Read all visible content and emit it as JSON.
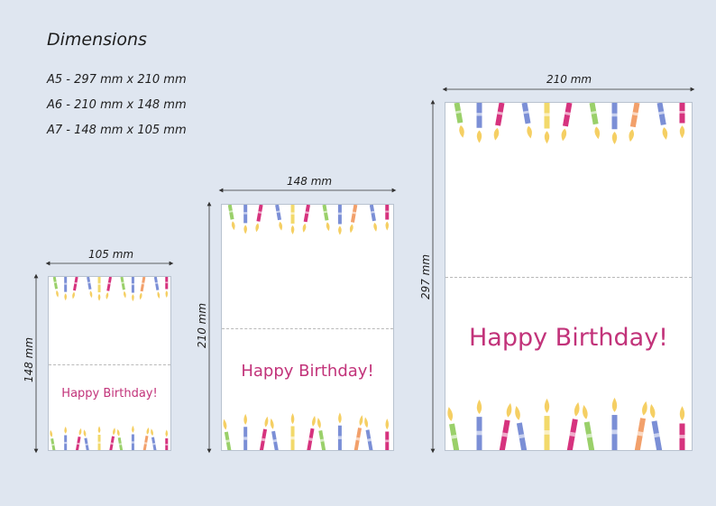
{
  "heading": "Dimensions",
  "dimension_lines": [
    "A5 - 297 mm x 210 mm",
    "A6 - 210 mm x 148 mm",
    "A7 - 148 mm x 105 mm"
  ],
  "cards": {
    "a7": {
      "width_label": "105 mm",
      "height_label": "148 mm",
      "greeting": "Happy Birthday!"
    },
    "a6": {
      "width_label": "148 mm",
      "height_label": "210 mm",
      "greeting": "Happy Birthday!"
    },
    "a5": {
      "width_label": "210 mm",
      "height_label": "297 mm",
      "greeting": "Happy Birthday!"
    }
  },
  "colors": {
    "background": "#dfe6f0",
    "greeting": "#c2337a",
    "candle_pink": "#d6337e",
    "candle_blue": "#7b8fd6",
    "candle_yellow": "#f2d96b",
    "candle_green": "#9ad06a",
    "candle_orange": "#f2a06b",
    "flame": "#f5cf63"
  }
}
